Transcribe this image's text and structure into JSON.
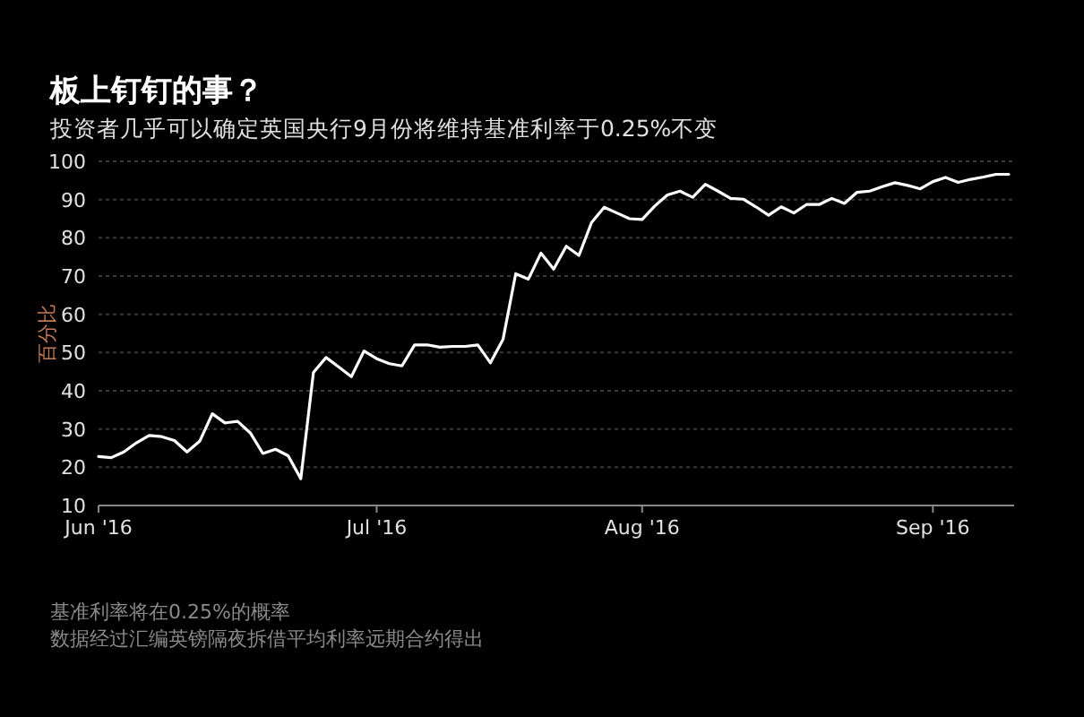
{
  "chart_data": {
    "type": "line",
    "title": "板上钉钉的事？",
    "subtitle": "投资者几乎可以确定英国央行9月份将维持基准利率于0.25%不变",
    "ylabel": "百分比",
    "categories": [
      "Jun '16",
      null,
      null,
      null,
      null,
      null,
      null,
      null,
      null,
      null,
      null,
      null,
      null,
      null,
      null,
      null,
      null,
      null,
      null,
      null,
      null,
      null,
      "Jul '16",
      null,
      null,
      null,
      null,
      null,
      null,
      null,
      null,
      null,
      null,
      null,
      null,
      null,
      null,
      null,
      null,
      null,
      null,
      null,
      null,
      "Aug '16",
      null,
      null,
      null,
      null,
      null,
      null,
      null,
      null,
      null,
      null,
      null,
      null,
      null,
      null,
      null,
      null,
      null,
      null,
      null,
      null,
      null,
      null,
      "Sep '16",
      null,
      null,
      null,
      null,
      null,
      null
    ],
    "values": [
      22.8,
      22.5,
      24,
      26.4,
      28.3,
      28,
      27,
      24,
      26.8,
      34,
      31.6,
      32,
      29,
      23.6,
      24.7,
      23,
      17,
      44.8,
      48.7,
      46.2,
      43.7,
      50.4,
      48.4,
      47.1,
      46.5,
      52,
      52,
      51.4,
      51.6,
      51.6,
      52,
      47.3,
      53.5,
      70.6,
      69.2,
      76,
      71.8,
      77.8,
      75.4,
      84,
      88,
      86.5,
      85,
      84.8,
      88.3,
      91.2,
      92.2,
      90.6,
      94,
      92.2,
      90.3,
      90.1,
      88.1,
      85.9,
      88.1,
      86.5,
      88.7,
      88.7,
      90.3,
      89,
      91.9,
      92.2,
      93.4,
      94.4,
      93.7,
      92.8,
      94.7,
      95.8,
      94.5,
      95.3,
      95.9,
      96.6,
      96.6
    ],
    "color": "#ffffff",
    "ylim": [
      10,
      100
    ],
    "yticks": [
      10,
      20,
      30,
      40,
      50,
      60,
      70,
      80,
      90,
      100
    ],
    "grid": "y",
    "annotations": [
      "基准利率将在0.25%的概率",
      "数据经过汇编英镑隔夜拆借平均利率远期合约得出"
    ]
  }
}
